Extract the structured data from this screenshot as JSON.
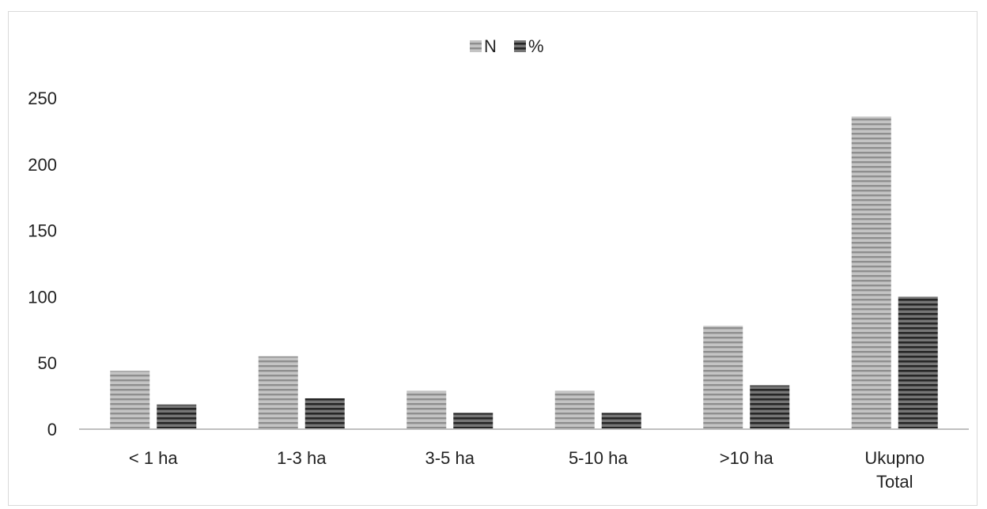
{
  "chart_data": {
    "type": "bar",
    "categories": [
      [
        "< 1 ha"
      ],
      [
        "1-3 ha"
      ],
      [
        "3-5 ha"
      ],
      [
        "5-10 ha"
      ],
      [
        ">10 ha"
      ],
      [
        "Ukupno",
        "Total"
      ]
    ],
    "series": [
      {
        "name": "N",
        "values": [
          44,
          55,
          29,
          29,
          78,
          236
        ],
        "color": "#b0b0b0"
      },
      {
        "name": "%",
        "values": [
          18.6,
          23.3,
          12.3,
          12.3,
          33.1,
          100
        ],
        "color": "#4a4a4a"
      }
    ],
    "ylim": [
      0,
      250
    ],
    "yticks": [
      0,
      50,
      100,
      150,
      200,
      250
    ],
    "grid": false,
    "legend_position": "top-center",
    "title": "",
    "xlabel": "",
    "ylabel": ""
  }
}
